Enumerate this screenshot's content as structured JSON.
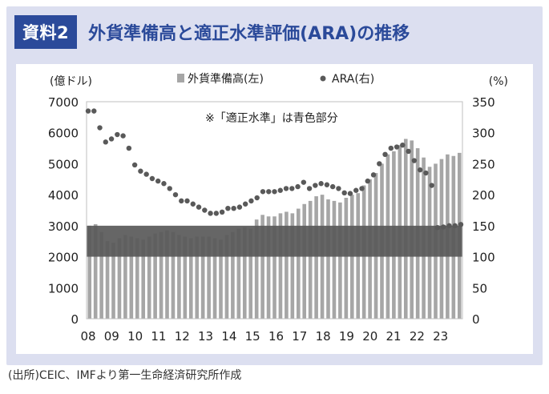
{
  "header": {
    "tag": "資料2",
    "title": "外貨準備高と適正水準評価(ARA)の推移"
  },
  "source": "(出所)CEIC、IMFより第一生命経済研究所作成",
  "chart_data": {
    "type": "bar+scatter",
    "yunit_left": "(億ドル)",
    "yunit_right": "(%)",
    "ylim_left": [
      0,
      7000
    ],
    "ylim_right": [
      0,
      350
    ],
    "yticks_left": [
      "0",
      "1000",
      "2000",
      "3000",
      "4000",
      "5000",
      "6000",
      "7000"
    ],
    "yticks_right": [
      "0",
      "50",
      "100",
      "150",
      "200",
      "250",
      "300",
      "350"
    ],
    "xticks": [
      "08",
      "09",
      "10",
      "11",
      "12",
      "13",
      "14",
      "15",
      "16",
      "17",
      "18",
      "19",
      "20",
      "21",
      "22",
      "23"
    ],
    "legend": {
      "bar": "外貨準備高(左)",
      "dot": "ARA(右)"
    },
    "annotation": "※「適正水準」は青色部分",
    "adequate_band": {
      "low": 2000,
      "high": 3000
    },
    "colors": {
      "bar": "#a6a6a6",
      "band": "#595959",
      "dot": "#595959",
      "accent": "#2b4a9a"
    },
    "series": [
      {
        "name": "外貨準備高",
        "axis": "left",
        "values": [
          3000,
          3050,
          2800,
          2500,
          2450,
          2600,
          2700,
          2650,
          2600,
          2550,
          2650,
          2750,
          2800,
          2850,
          2800,
          2700,
          2650,
          2600,
          2650,
          2650,
          2650,
          2600,
          2550,
          2700,
          2800,
          2900,
          2950,
          2900,
          3200,
          3350,
          3300,
          3300,
          3400,
          3450,
          3400,
          3550,
          3700,
          3800,
          3950,
          4000,
          3850,
          3800,
          3750,
          3900,
          4000,
          4050,
          4300,
          4500,
          4700,
          5000,
          5300,
          5400,
          5600,
          5800,
          5750,
          5500,
          5200,
          4900,
          5000,
          5150,
          5300,
          5250,
          5350
        ]
      },
      {
        "name": "ARA",
        "axis": "right",
        "values": [
          335,
          335,
          308,
          285,
          290,
          297,
          295,
          275,
          248,
          238,
          233,
          226,
          222,
          218,
          210,
          200,
          190,
          190,
          185,
          180,
          175,
          170,
          170,
          172,
          178,
          178,
          180,
          185,
          190,
          195,
          205,
          205,
          205,
          207,
          210,
          210,
          213,
          220,
          210,
          215,
          218,
          216,
          213,
          210,
          203,
          202,
          207,
          210,
          222,
          232,
          250,
          265,
          275,
          277,
          280,
          270,
          255,
          240,
          235,
          215,
          147,
          148,
          150,
          150,
          152
        ]
      }
    ]
  }
}
